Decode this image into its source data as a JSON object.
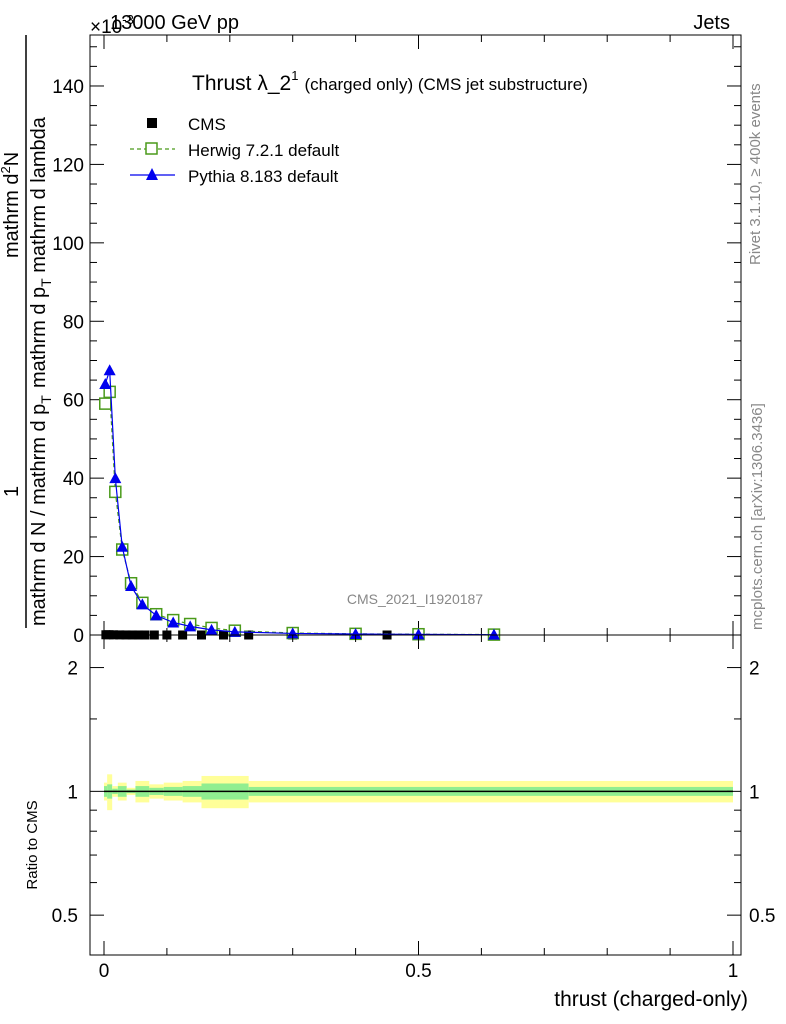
{
  "header": {
    "energy": "13000 GeV pp",
    "exponent_prefix": "×10",
    "exponent_power": "-3",
    "process": "Jets"
  },
  "side_labels": {
    "rivet": "Rivet 3.1.10, ≥ 400k events",
    "mcplots": "mcplots.cern.ch [arXiv:1306.3436]"
  },
  "watermark": "CMS_2021_I1920187",
  "chart_data": [
    {
      "type": "line",
      "title": "Thrust λ_2",
      "title_superscript": "1",
      "subtitle": "(charged only) (CMS jet substructure)",
      "ylabel_numerator": "1",
      "ylabel_denominator": "mathrm d N / mathrm d p",
      "ylabel_denominator_sub": "T",
      "ylabel_right_main": "mathrm d",
      "ylabel_right_sup": "2",
      "ylabel_right_tail": "N",
      "ylabel_right_denominator": "mathrm d p",
      "ylabel_right_denominator_sub": "T",
      "ylabel_right_denominator_tail": " mathrm d lambda",
      "xlim": [
        0,
        1
      ],
      "ylim": [
        0,
        153
      ],
      "y_ticks": [
        0,
        20,
        40,
        60,
        80,
        100,
        120,
        140
      ],
      "y_tick_labels": [
        "0",
        "20",
        "40",
        "60",
        "80",
        "100",
        "120",
        "140"
      ],
      "legend_position": "top-left",
      "series": [
        {
          "name": "CMS",
          "color": "#000000",
          "marker": "filled-square",
          "x": [
            0.003,
            0.008,
            0.015,
            0.025,
            0.035,
            0.045,
            0.055,
            0.065,
            0.08,
            0.1,
            0.125,
            0.155,
            0.19,
            0.23,
            0.3,
            0.45,
            0.62
          ],
          "y": [
            0.06,
            0.065,
            0.045,
            0.025,
            0.014,
            0.009,
            0.006,
            0.004,
            0.003,
            0.002,
            0.0015,
            0.001,
            0.0008,
            0.0006,
            0.0004,
            0.0002,
            0.0001
          ]
        },
        {
          "name": "Herwig 7.2.1 default",
          "color": "#4a9a1a",
          "marker": "open-square",
          "dashed": true,
          "x": [
            0.002,
            0.009,
            0.018,
            0.029,
            0.043,
            0.061,
            0.083,
            0.11,
            0.137,
            0.171,
            0.208,
            0.3,
            0.4,
            0.5,
            0.62
          ],
          "y": [
            59,
            62,
            36.5,
            21.8,
            13.2,
            8.2,
            5.3,
            3.8,
            2.8,
            1.8,
            1.1,
            0.5,
            0.3,
            0.2,
            0.1
          ]
        },
        {
          "name": "Pythia 8.183 default",
          "color": "#0000ee",
          "marker": "filled-triangle",
          "dashed": false,
          "x": [
            0.002,
            0.009,
            0.018,
            0.029,
            0.043,
            0.061,
            0.083,
            0.11,
            0.137,
            0.171,
            0.208,
            0.3,
            0.4,
            0.5,
            0.62
          ],
          "y": [
            64,
            67.5,
            40,
            22.5,
            12.5,
            7.8,
            5.0,
            3.2,
            2.2,
            1.3,
            0.8,
            0.4,
            0.25,
            0.15,
            0.08
          ]
        }
      ]
    },
    {
      "type": "area",
      "ylabel": "Ratio to CMS",
      "xlabel": "thrust (charged-only)",
      "xlim": [
        0,
        1
      ],
      "ylim": [
        0.4,
        2.4
      ],
      "log_y": true,
      "y_ticks": [
        0.5,
        1,
        2
      ],
      "y_tick_labels": [
        "0.5",
        "1",
        "2"
      ],
      "x_ticks": [
        0,
        0.5,
        1
      ],
      "x_tick_labels": [
        "0",
        "0.5",
        "1"
      ],
      "reference_line": 1,
      "band_colors": {
        "stat": "#90ee90",
        "total": "#ffff99",
        "line": "#000000"
      },
      "bands": [
        {
          "x0": 0.0,
          "x1": 0.005,
          "stat": 0.03,
          "total": 0.05
        },
        {
          "x0": 0.005,
          "x1": 0.013,
          "stat": 0.04,
          "total": 0.1
        },
        {
          "x0": 0.013,
          "x1": 0.022,
          "stat": 0.015,
          "total": 0.03
        },
        {
          "x0": 0.022,
          "x1": 0.036,
          "stat": 0.03,
          "total": 0.05
        },
        {
          "x0": 0.036,
          "x1": 0.05,
          "stat": 0.01,
          "total": 0.02
        },
        {
          "x0": 0.05,
          "x1": 0.072,
          "stat": 0.03,
          "total": 0.06
        },
        {
          "x0": 0.072,
          "x1": 0.095,
          "stat": 0.02,
          "total": 0.04
        },
        {
          "x0": 0.095,
          "x1": 0.125,
          "stat": 0.025,
          "total": 0.05
        },
        {
          "x0": 0.125,
          "x1": 0.155,
          "stat": 0.03,
          "total": 0.06
        },
        {
          "x0": 0.155,
          "x1": 0.19,
          "stat": 0.045,
          "total": 0.09
        },
        {
          "x0": 0.19,
          "x1": 0.23,
          "stat": 0.045,
          "total": 0.09
        },
        {
          "x0": 0.23,
          "x1": 1.0,
          "stat": 0.025,
          "total": 0.06
        }
      ]
    }
  ]
}
